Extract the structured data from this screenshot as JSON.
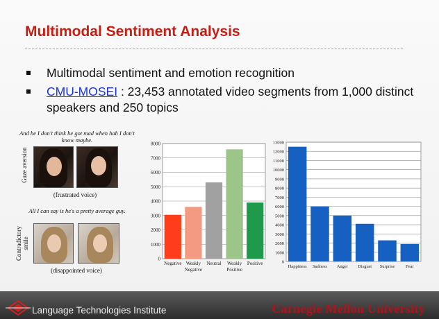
{
  "slide": {
    "title": "Multimodal Sentiment Analysis",
    "bullets": [
      {
        "text": "Multimodal sentiment and emotion recognition"
      },
      {
        "link": "CMU-MOSEI",
        "text": " : 23,453 annotated video segments from 1,000 distinct speakers and 250 topics"
      }
    ]
  },
  "examples": [
    {
      "quote": "And he I don't think he got mad when hah I don't know maybe.",
      "side_label": "Gaze aversion",
      "caption": "(frustrated voice)"
    },
    {
      "quote": "All I can say is he's a pretty average guy.",
      "side_label": "Contradictory smile",
      "caption": "(disappointed voice)"
    }
  ],
  "chart_data": [
    {
      "type": "bar",
      "categories": [
        "Negative",
        "Weakly Negative",
        "Neutral",
        "Weakly Positive",
        "Positive"
      ],
      "category_lines": [
        [
          "Negative"
        ],
        [
          "Weakly",
          "Negative"
        ],
        [
          "Neutral"
        ],
        [
          "Weakly",
          "Positive"
        ],
        [
          "Positive"
        ]
      ],
      "values": [
        3050,
        3600,
        5300,
        7600,
        3900
      ],
      "colors": [
        "#ff3d1a",
        "#f49a82",
        "#a1a1a1",
        "#9cc58a",
        "#1f9a4a"
      ],
      "ylim": [
        0,
        8000
      ],
      "yticks": [
        0,
        1000,
        2000,
        3000,
        4000,
        5000,
        6000,
        7000,
        8000
      ],
      "grid": true
    },
    {
      "type": "bar",
      "categories": [
        "Happiness",
        "Sadness",
        "Anger",
        "Disgust",
        "Surprise",
        "Fear"
      ],
      "category_lines": [
        [
          "Happiness"
        ],
        [
          "Sadness"
        ],
        [
          "Anger"
        ],
        [
          "Disgust"
        ],
        [
          "Surprise"
        ],
        [
          "Fear"
        ]
      ],
      "values": [
        12500,
        6000,
        5000,
        4100,
        2300,
        1900
      ],
      "colors": [
        "#1560c0",
        "#1560c0",
        "#1560c0",
        "#1560c0",
        "#1560c0",
        "#1560c0"
      ],
      "ylim": [
        0,
        13000
      ],
      "yticks": [
        0,
        1000,
        2000,
        3000,
        4000,
        5000,
        6000,
        7000,
        8000,
        9000,
        10000,
        11000,
        12000,
        13000
      ],
      "grid": true
    }
  ],
  "footer": {
    "institute": "Language Technologies Institute",
    "university": "Carnegie Mellon University"
  }
}
